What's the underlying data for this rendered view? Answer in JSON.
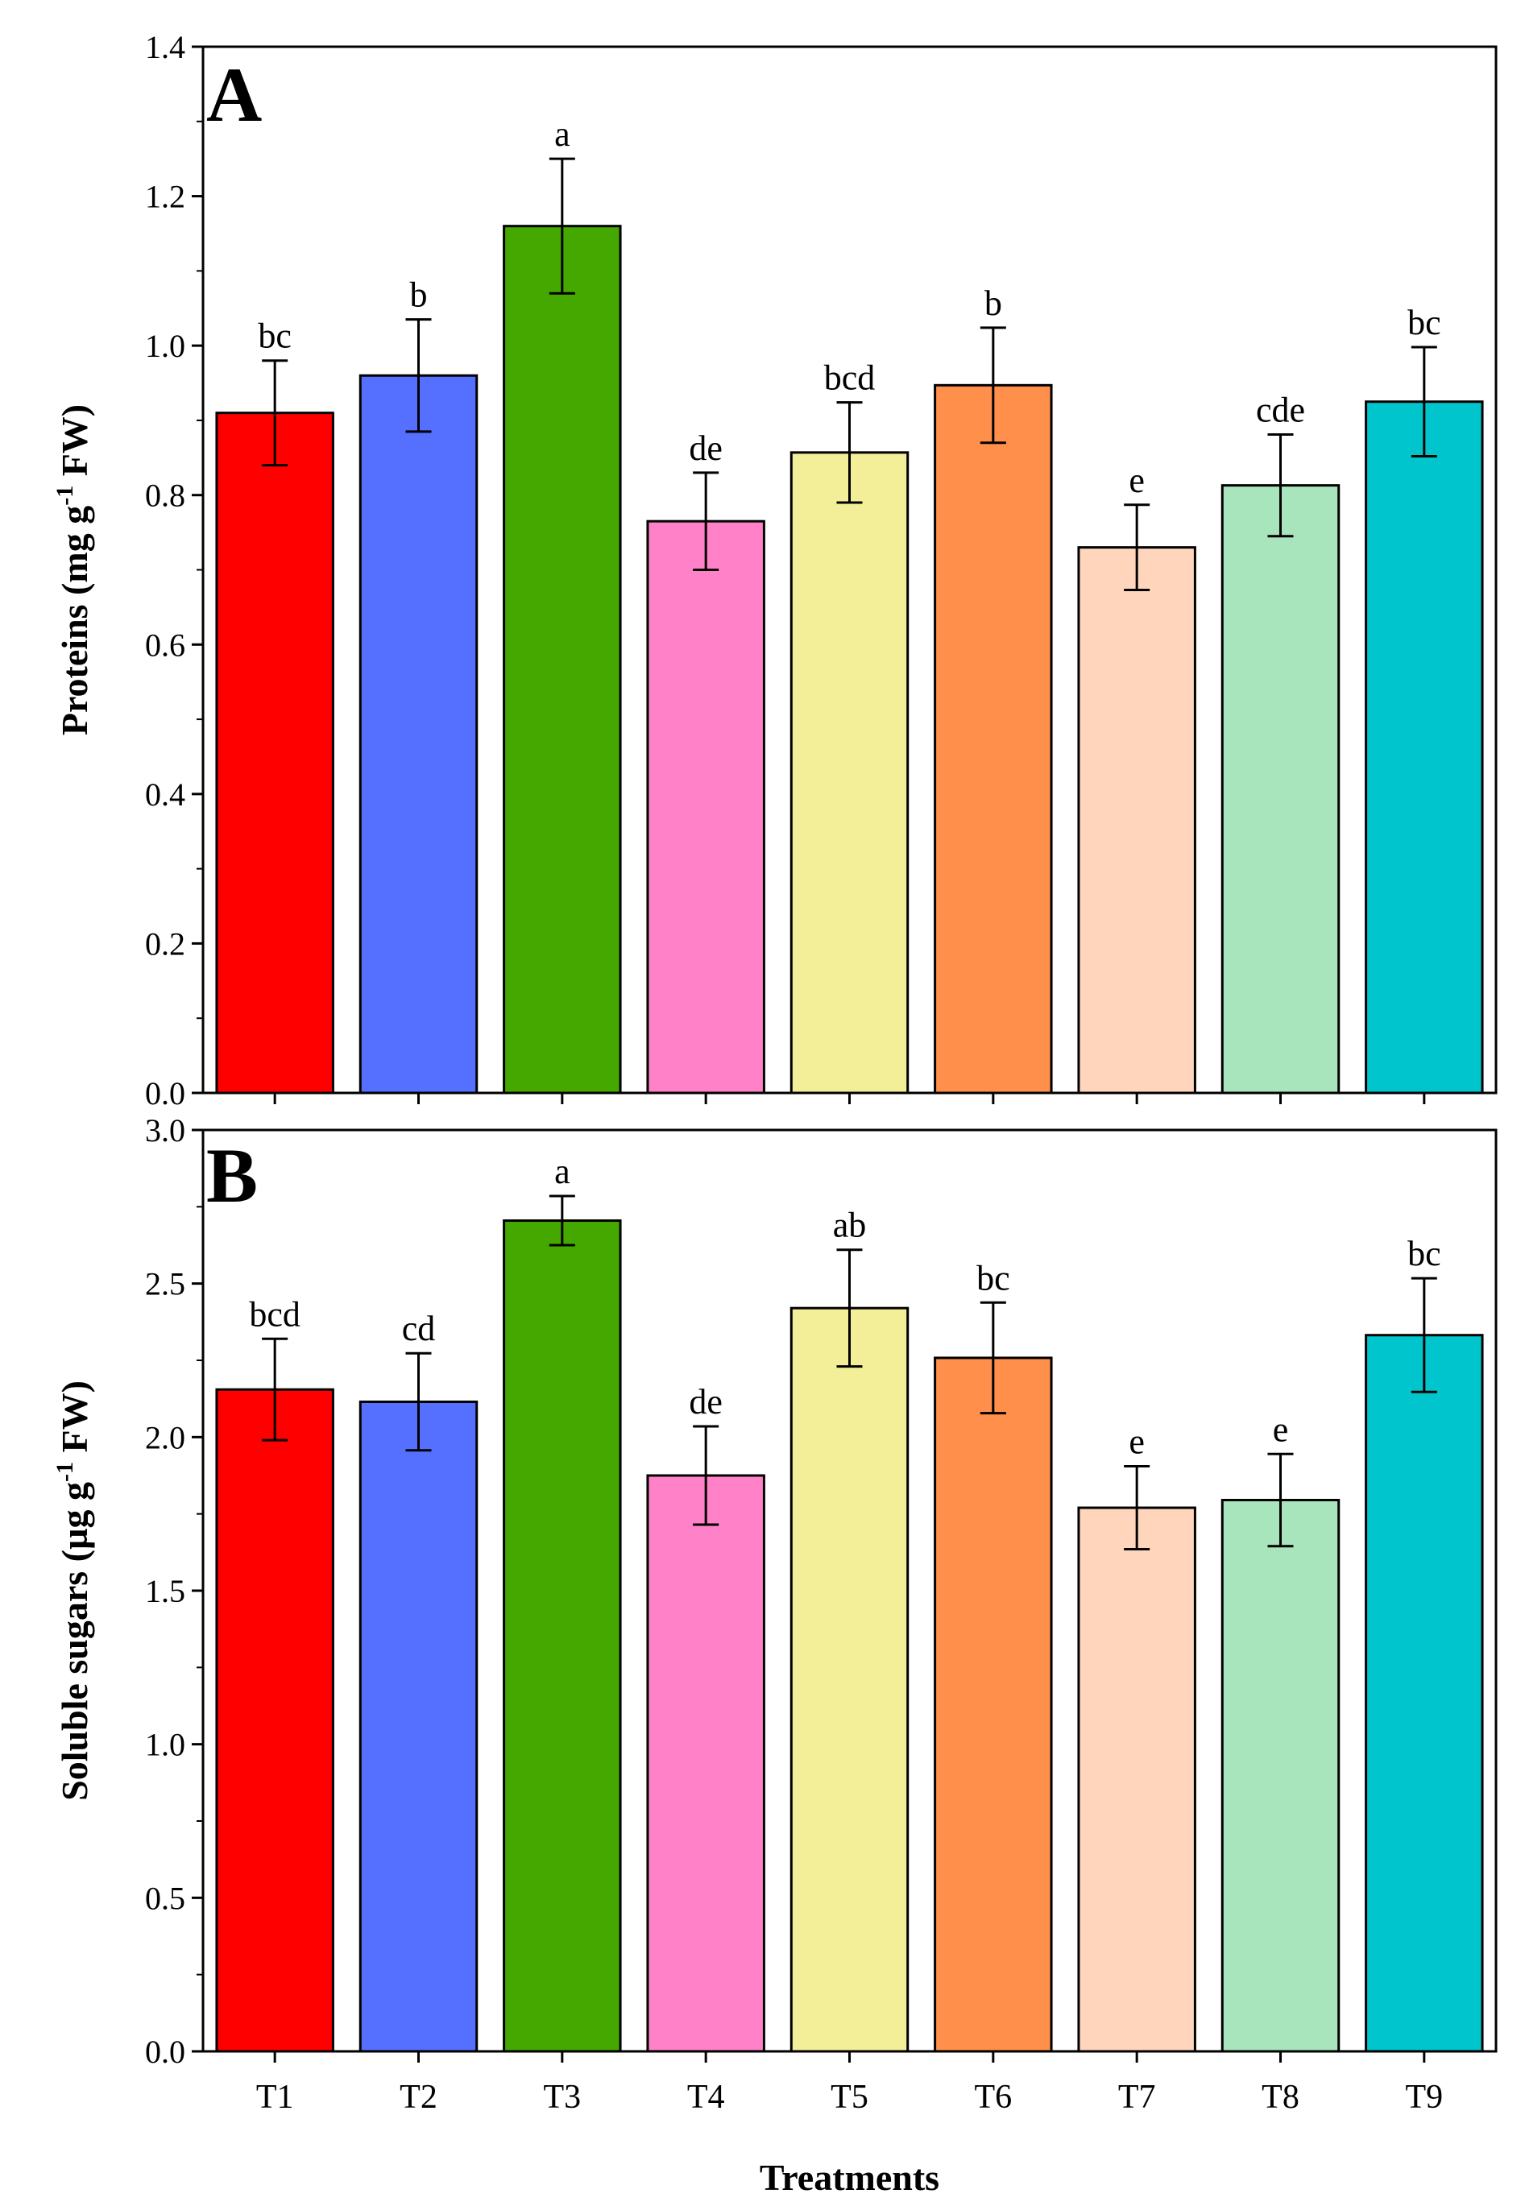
{
  "chart_data": [
    {
      "type": "bar",
      "panel": "A",
      "categories": [
        "T1",
        "T2",
        "T3",
        "T4",
        "T5",
        "T6",
        "T7",
        "T8",
        "T9"
      ],
      "values": [
        0.91,
        0.96,
        1.16,
        0.765,
        0.857,
        0.947,
        0.73,
        0.813,
        0.925
      ],
      "errors": [
        0.07,
        0.075,
        0.09,
        0.065,
        0.067,
        0.077,
        0.057,
        0.068,
        0.073
      ],
      "significance": [
        "bc",
        "b",
        "a",
        "de",
        "bcd",
        "b",
        "e",
        "cde",
        "bc"
      ],
      "ylabel_main": "Proteins (mg g",
      "ylabel_sup": "-1",
      "ylabel_end": " FW)",
      "ylim": [
        0,
        1.4
      ],
      "yticks": [
        "0.0",
        "0.2",
        "0.4",
        "0.6",
        "0.8",
        "1.0",
        "1.2",
        "1.4"
      ],
      "colors": [
        "#ff0000",
        "#5570fe",
        "#44a800",
        "#ff82c8",
        "#f3ee98",
        "#ff8f4a",
        "#ffd6bc",
        "#a8e5bd",
        "#00c5cd"
      ]
    },
    {
      "type": "bar",
      "panel": "B",
      "categories": [
        "T1",
        "T2",
        "T3",
        "T4",
        "T5",
        "T6",
        "T7",
        "T8",
        "T9"
      ],
      "values": [
        2.155,
        2.115,
        2.705,
        1.875,
        2.42,
        2.258,
        1.77,
        1.795,
        2.332
      ],
      "errors": [
        0.165,
        0.158,
        0.08,
        0.16,
        0.19,
        0.18,
        0.135,
        0.15,
        0.185
      ],
      "significance": [
        "bcd",
        "cd",
        "a",
        "de",
        "ab",
        "bc",
        "e",
        "e",
        "bc"
      ],
      "xlabel": "Treatments",
      "ylabel_main": "Soluble sugars (µg g",
      "ylabel_sup": "-1",
      "ylabel_end": " FW)",
      "ylim": [
        0,
        3.0
      ],
      "yticks": [
        "0.0",
        "0.5",
        "1.0",
        "1.5",
        "2.0",
        "2.5",
        "3.0"
      ],
      "colors": [
        "#ff0000",
        "#5570fe",
        "#44a800",
        "#ff82c8",
        "#f3ee98",
        "#ff8f4a",
        "#ffd6bc",
        "#a8e5bd",
        "#00c5cd"
      ]
    }
  ]
}
